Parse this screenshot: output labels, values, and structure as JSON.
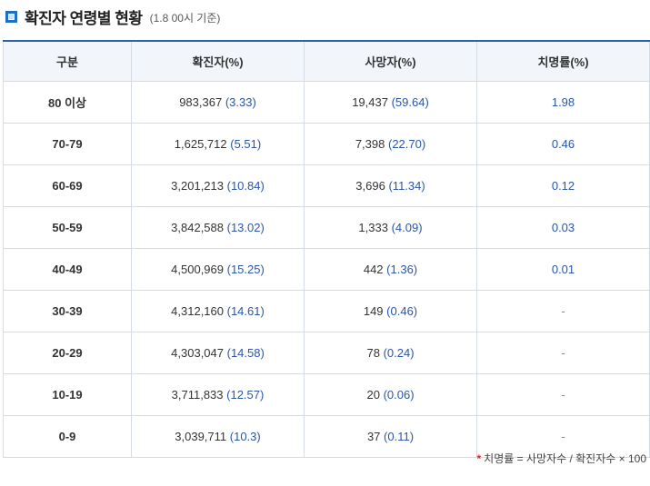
{
  "header": {
    "title": "확진자 연령별 현황",
    "subtitle": "(1.8 00시 기준)"
  },
  "table": {
    "columns": [
      "구분",
      "확진자(%)",
      "사망자(%)",
      "치명률(%)"
    ],
    "rows": [
      {
        "age": "80 이상",
        "confirmed": "983,367",
        "confirmed_pct": "(3.33)",
        "deaths": "19,437",
        "deaths_pct": "(59.64)",
        "fatality": "1.98"
      },
      {
        "age": "70-79",
        "confirmed": "1,625,712",
        "confirmed_pct": "(5.51)",
        "deaths": "7,398",
        "deaths_pct": "(22.70)",
        "fatality": "0.46"
      },
      {
        "age": "60-69",
        "confirmed": "3,201,213",
        "confirmed_pct": "(10.84)",
        "deaths": "3,696",
        "deaths_pct": "(11.34)",
        "fatality": "0.12"
      },
      {
        "age": "50-59",
        "confirmed": "3,842,588",
        "confirmed_pct": "(13.02)",
        "deaths": "1,333",
        "deaths_pct": "(4.09)",
        "fatality": "0.03"
      },
      {
        "age": "40-49",
        "confirmed": "4,500,969",
        "confirmed_pct": "(15.25)",
        "deaths": "442",
        "deaths_pct": "(1.36)",
        "fatality": "0.01"
      },
      {
        "age": "30-39",
        "confirmed": "4,312,160",
        "confirmed_pct": "(14.61)",
        "deaths": "149",
        "deaths_pct": "(0.46)",
        "fatality": "-"
      },
      {
        "age": "20-29",
        "confirmed": "4,303,047",
        "confirmed_pct": "(14.58)",
        "deaths": "78",
        "deaths_pct": "(0.24)",
        "fatality": "-"
      },
      {
        "age": "10-19",
        "confirmed": "3,711,833",
        "confirmed_pct": "(12.57)",
        "deaths": "20",
        "deaths_pct": "(0.06)",
        "fatality": "-"
      },
      {
        "age": "0-9",
        "confirmed": "3,039,711",
        "confirmed_pct": "(10.3)",
        "deaths": "37",
        "deaths_pct": "(0.11)",
        "fatality": "-"
      }
    ]
  },
  "footnote": {
    "star": "*",
    "text": "치명률 = 사망자수 / 확진자수 × 100"
  },
  "colors": {
    "accent": "#1f6fc0",
    "header_border": "#2c5fa8",
    "pct_text": "#2a55a8",
    "footnote_star": "#d6262e"
  }
}
